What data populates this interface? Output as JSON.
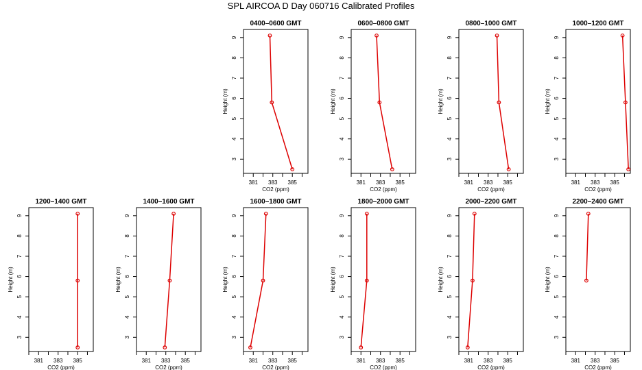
{
  "title": "SPL AIRCOA D  Day 060716  Calibrated Profiles",
  "chart_data": {
    "type": "line",
    "title": "SPL AIRCOA D  Day 060716  Calibrated Profiles",
    "xlabel": "CO2 (ppm)",
    "ylabel": "Height (m)",
    "xlim": [
      380,
      386.6
    ],
    "ylim": [
      2.3,
      9.4
    ],
    "x_ticks": [
      381,
      383,
      385
    ],
    "x_minor_ticks": [
      380,
      382,
      384,
      386
    ],
    "y_ticks": [
      3,
      4,
      5,
      6,
      7,
      8,
      9
    ],
    "line_color": "#dd0000",
    "panels": [
      {
        "title": "0400–0600 GMT",
        "points": [
          {
            "x": 382.7,
            "y": 9.1
          },
          {
            "x": 382.9,
            "y": 5.8
          },
          {
            "x": 385.0,
            "y": 2.5
          }
        ]
      },
      {
        "title": "0600–0800 GMT",
        "points": [
          {
            "x": 382.6,
            "y": 9.1
          },
          {
            "x": 382.9,
            "y": 5.8
          },
          {
            "x": 384.2,
            "y": 2.5
          }
        ]
      },
      {
        "title": "0800–1000 GMT",
        "points": [
          {
            "x": 383.9,
            "y": 9.1
          },
          {
            "x": 384.1,
            "y": 5.8
          },
          {
            "x": 385.1,
            "y": 2.5
          }
        ]
      },
      {
        "title": "1000–1200 GMT",
        "points": [
          {
            "x": 385.8,
            "y": 9.1
          },
          {
            "x": 386.1,
            "y": 5.8
          },
          {
            "x": 386.4,
            "y": 2.5
          }
        ]
      },
      {
        "title": "1200–1400 GMT",
        "points": [
          {
            "x": 385.0,
            "y": 9.1
          },
          {
            "x": 385.0,
            "y": 5.8
          },
          {
            "x": 385.0,
            "y": 2.5
          }
        ]
      },
      {
        "title": "1400–1600 GMT",
        "points": [
          {
            "x": 383.8,
            "y": 9.1
          },
          {
            "x": 383.4,
            "y": 5.8
          },
          {
            "x": 382.9,
            "y": 2.5
          }
        ]
      },
      {
        "title": "1600–1800 GMT",
        "points": [
          {
            "x": 382.3,
            "y": 9.1
          },
          {
            "x": 382.0,
            "y": 5.8
          },
          {
            "x": 380.7,
            "y": 2.5
          }
        ]
      },
      {
        "title": "1800–2000 GMT",
        "points": [
          {
            "x": 381.6,
            "y": 9.1
          },
          {
            "x": 381.6,
            "y": 5.8
          },
          {
            "x": 381.0,
            "y": 2.5
          }
        ]
      },
      {
        "title": "2000–2200 GMT",
        "points": [
          {
            "x": 381.6,
            "y": 9.1
          },
          {
            "x": 381.4,
            "y": 5.8
          },
          {
            "x": 380.9,
            "y": 2.5
          }
        ]
      },
      {
        "title": "2200–2400 GMT",
        "points": [
          {
            "x": 382.3,
            "y": 9.1
          },
          {
            "x": 382.1,
            "y": 5.8
          }
        ]
      }
    ]
  }
}
